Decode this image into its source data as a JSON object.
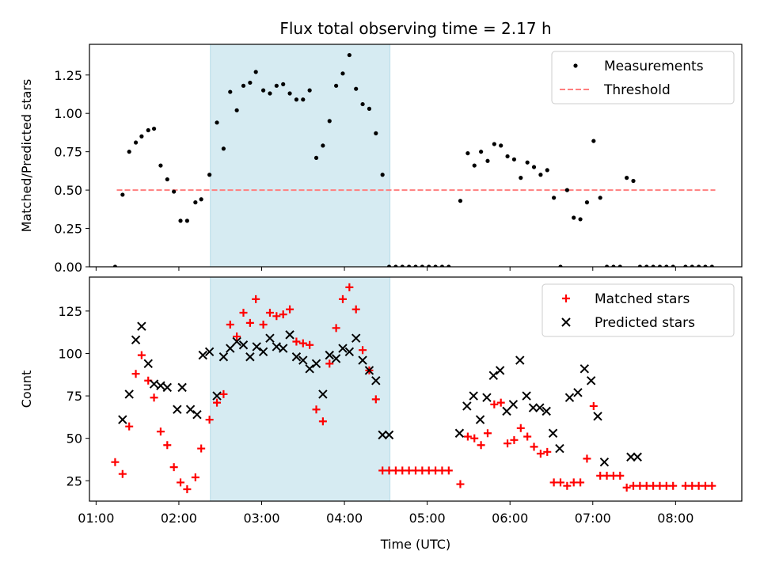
{
  "title": "Flux total observing time = 2.17 h",
  "colors": {
    "measurement": "#000000",
    "threshold": "#ff7f7f",
    "matched": "#ff0000",
    "predicted": "#000000",
    "highlight": "#add8e6"
  },
  "chart_data": [
    {
      "type": "scatter",
      "ylabel": "Matched/Predicted stars",
      "xlim": [
        0.92,
        8.8
      ],
      "ylim": [
        0,
        1.45
      ],
      "yticks": [
        "0.00",
        "0.25",
        "0.50",
        "0.75",
        "1.00",
        "1.25"
      ],
      "ytick_values": [
        0,
        0.25,
        0.5,
        0.75,
        1.0,
        1.25
      ],
      "highlight": [
        2.38,
        4.55
      ],
      "threshold": {
        "value": 0.5,
        "x": [
          1.25,
          8.48
        ]
      },
      "legend": {
        "placement": "top-right",
        "entries": [
          "Measurements",
          "Threshold"
        ]
      },
      "series": [
        {
          "name": "Measurements",
          "x": [
            1.23,
            1.32,
            1.4,
            1.48,
            1.55,
            1.63,
            1.7,
            1.78,
            1.86,
            1.94,
            2.02,
            2.1,
            2.2,
            2.27,
            2.37,
            2.46,
            2.54,
            2.62,
            2.7,
            2.78,
            2.86,
            2.93,
            3.02,
            3.1,
            3.18,
            3.26,
            3.34,
            3.42,
            3.5,
            3.58,
            3.66,
            3.74,
            3.82,
            3.9,
            3.98,
            4.06,
            4.14,
            4.22,
            4.3,
            4.38,
            4.46,
            4.54,
            4.62,
            4.7,
            4.78,
            4.86,
            4.94,
            5.02,
            5.1,
            5.18,
            5.26,
            5.4,
            5.49,
            5.57,
            5.65,
            5.73,
            5.81,
            5.89,
            5.97,
            6.05,
            6.13,
            6.21,
            6.29,
            6.37,
            6.45,
            6.53,
            6.61,
            6.69,
            6.77,
            6.85,
            6.93,
            7.01,
            7.09,
            7.17,
            7.25,
            7.33,
            7.41,
            7.49,
            7.57,
            7.65,
            7.73,
            7.81,
            7.89,
            7.97,
            8.12,
            8.2,
            8.28,
            8.36,
            8.44
          ],
          "y": [
            0.0,
            0.47,
            0.75,
            0.81,
            0.85,
            0.89,
            0.9,
            0.66,
            0.57,
            0.49,
            0.3,
            0.3,
            0.42,
            0.44,
            0.6,
            0.94,
            0.77,
            1.14,
            1.02,
            1.18,
            1.2,
            1.27,
            1.15,
            1.13,
            1.18,
            1.19,
            1.13,
            1.09,
            1.09,
            1.15,
            0.71,
            0.79,
            0.95,
            1.18,
            1.26,
            1.38,
            1.16,
            1.06,
            1.03,
            0.87,
            0.6,
            0.0,
            0.0,
            0.0,
            0.0,
            0.0,
            0.0,
            0.0,
            0.0,
            0.0,
            0.0,
            0.43,
            0.74,
            0.66,
            0.75,
            0.69,
            0.8,
            0.79,
            0.72,
            0.7,
            0.58,
            0.68,
            0.65,
            0.6,
            0.63,
            0.45,
            0.0,
            0.5,
            0.32,
            0.31,
            0.42,
            0.82,
            0.45,
            0.0,
            0.0,
            0.0,
            0.58,
            0.56,
            0.0,
            0.0,
            0.0,
            0.0,
            0.0,
            0.0,
            0.0,
            0.0,
            0.0,
            0.0,
            0.0
          ]
        }
      ]
    },
    {
      "type": "scatter",
      "xlabel": "Time (UTC)",
      "ylabel": "Count",
      "xlim": [
        0.92,
        8.8
      ],
      "ylim": [
        13,
        145
      ],
      "yticks": [
        "25",
        "50",
        "75",
        "100",
        "125"
      ],
      "ytick_values": [
        25,
        50,
        75,
        100,
        125
      ],
      "xticks": [
        "01:00",
        "02:00",
        "03:00",
        "04:00",
        "05:00",
        "06:00",
        "07:00",
        "08:00"
      ],
      "xtick_values": [
        1,
        2,
        3,
        4,
        5,
        6,
        7,
        8
      ],
      "highlight": [
        2.38,
        4.55
      ],
      "legend": {
        "placement": "top-right",
        "entries": [
          "Matched stars",
          "Predicted stars"
        ]
      },
      "series": [
        {
          "name": "Matched stars",
          "marker": "plus",
          "x": [
            1.23,
            1.32,
            1.4,
            1.48,
            1.55,
            1.63,
            1.7,
            1.78,
            1.86,
            1.94,
            2.02,
            2.1,
            2.2,
            2.27,
            2.37,
            2.46,
            2.54,
            2.62,
            2.7,
            2.78,
            2.86,
            2.93,
            3.02,
            3.1,
            3.18,
            3.26,
            3.34,
            3.42,
            3.5,
            3.58,
            3.66,
            3.74,
            3.82,
            3.9,
            3.98,
            4.06,
            4.14,
            4.22,
            4.3,
            4.38,
            4.46,
            4.54,
            4.62,
            4.7,
            4.78,
            4.86,
            4.94,
            5.02,
            5.1,
            5.18,
            5.26,
            5.4,
            5.49,
            5.57,
            5.65,
            5.73,
            5.81,
            5.89,
            5.97,
            6.05,
            6.13,
            6.21,
            6.29,
            6.37,
            6.45,
            6.53,
            6.61,
            6.69,
            6.77,
            6.85,
            6.93,
            7.01,
            7.09,
            7.17,
            7.25,
            7.33,
            7.41,
            7.49,
            7.57,
            7.65,
            7.73,
            7.81,
            7.89,
            7.97,
            8.12,
            8.2,
            8.28,
            8.36,
            8.44
          ],
          "y": [
            36,
            29,
            57,
            88,
            99,
            84,
            74,
            54,
            46,
            33,
            24,
            20,
            27,
            44,
            61,
            71,
            76,
            117,
            110,
            124,
            118,
            132,
            117,
            124,
            122,
            123,
            126,
            107,
            106,
            105,
            67,
            60,
            94,
            115,
            132,
            139,
            126,
            102,
            90,
            73,
            31,
            31,
            31,
            31,
            31,
            31,
            31,
            31,
            31,
            31,
            31,
            23,
            51,
            50,
            46,
            53,
            70,
            71,
            47,
            49,
            56,
            51,
            45,
            41,
            42,
            24,
            24,
            22,
            24,
            24,
            38,
            69,
            28,
            28,
            28,
            28,
            21,
            22,
            22,
            22,
            22,
            22,
            22,
            22,
            22,
            22,
            22,
            22,
            22
          ]
        },
        {
          "name": "Predicted stars",
          "marker": "x",
          "x": [
            1.32,
            1.4,
            1.48,
            1.55,
            1.63,
            1.7,
            1.78,
            1.86,
            1.98,
            2.04,
            2.14,
            2.22,
            2.29,
            2.37,
            2.46,
            2.54,
            2.62,
            2.7,
            2.78,
            2.86,
            2.94,
            3.02,
            3.1,
            3.18,
            3.26,
            3.34,
            3.42,
            3.5,
            3.58,
            3.66,
            3.74,
            3.82,
            3.9,
            3.98,
            4.06,
            4.14,
            4.22,
            4.3,
            4.38,
            4.46,
            4.54,
            5.39,
            5.48,
            5.56,
            5.64,
            5.72,
            5.8,
            5.88,
            5.96,
            6.04,
            6.12,
            6.2,
            6.28,
            6.36,
            6.44,
            6.52,
            6.6,
            6.72,
            6.82,
            6.9,
            6.98,
            7.06,
            7.14,
            7.46,
            7.54
          ],
          "y": [
            61,
            76,
            108,
            116,
            94,
            82,
            81,
            80,
            67,
            80,
            67,
            64,
            99,
            101,
            75,
            98,
            103,
            107,
            105,
            98,
            104,
            101,
            109,
            104,
            103,
            111,
            98,
            96,
            91,
            94,
            76,
            99,
            97,
            103,
            101,
            109,
            96,
            90,
            84,
            52,
            52,
            53,
            69,
            75,
            61,
            74,
            87,
            90,
            66,
            70,
            96,
            75,
            68,
            68,
            66,
            53,
            44,
            74,
            77,
            91,
            84,
            63,
            36,
            39,
            39
          ]
        }
      ]
    }
  ]
}
